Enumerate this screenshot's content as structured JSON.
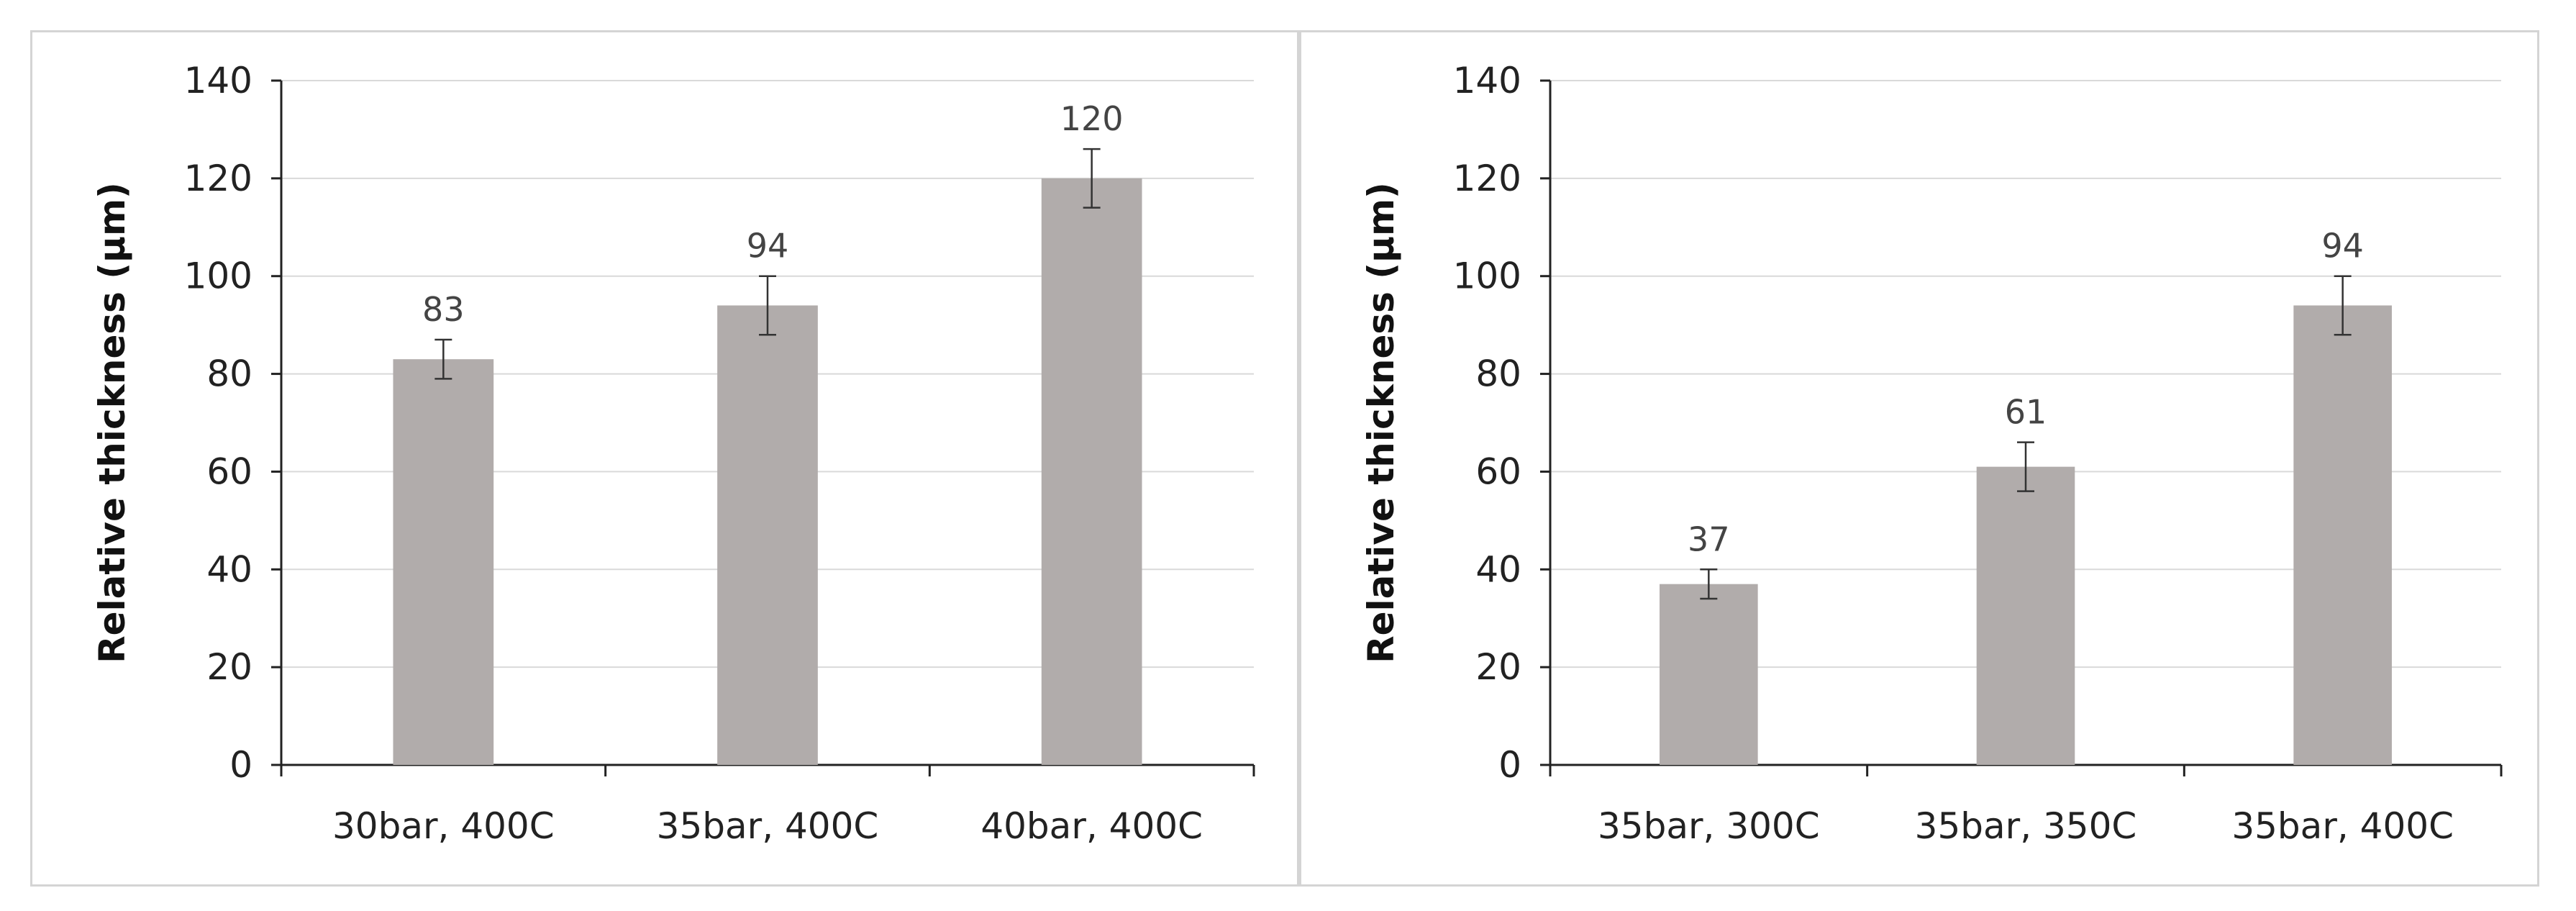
{
  "chart_data": [
    {
      "type": "bar",
      "categories": [
        "30bar, 400C",
        "35bar, 400C",
        "40bar, 400C"
      ],
      "values": [
        83,
        94,
        120
      ],
      "error": [
        4,
        6,
        6
      ],
      "data_labels": [
        "83",
        "94",
        "120"
      ],
      "ylabel": "Relative thickness (μm)",
      "ylim": [
        0,
        140
      ],
      "yticks": [
        0,
        20,
        40,
        60,
        80,
        100,
        120,
        140
      ],
      "grid": true,
      "bar_color": "#b1acab"
    },
    {
      "type": "bar",
      "categories": [
        "35bar, 300C",
        "35bar, 350C",
        "35bar, 400C"
      ],
      "values": [
        37,
        61,
        94
      ],
      "error": [
        3,
        5,
        6
      ],
      "data_labels": [
        "37",
        "61",
        "94"
      ],
      "ylabel": "Relative thickness (μm)",
      "ylim": [
        0,
        140
      ],
      "yticks": [
        0,
        20,
        40,
        60,
        80,
        100,
        120,
        140
      ],
      "grid": true,
      "bar_color": "#b1acab"
    }
  ]
}
